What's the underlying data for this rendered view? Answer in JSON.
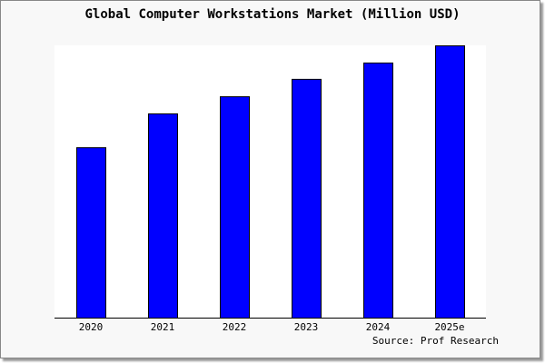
{
  "chart_data": {
    "type": "bar",
    "title": "Global Computer Workstations Market (Million USD)",
    "categories": [
      "2020",
      "2021",
      "2022",
      "2023",
      "2024",
      "2025e"
    ],
    "values": [
      62.6,
      75.0,
      81.3,
      87.7,
      93.7,
      100
    ],
    "value_note": "relative values, no y-axis printed (2025e = 100)",
    "ylim": [
      0,
      100
    ],
    "xlabel": "",
    "ylabel": "",
    "grid": false,
    "legend": "none",
    "source": "Source: Prof Research",
    "colors": {
      "bar": "#0000ff",
      "bar_outline": "#000000",
      "plot_bg": "#ffffff",
      "page_bg": "#f8f8f8"
    }
  }
}
